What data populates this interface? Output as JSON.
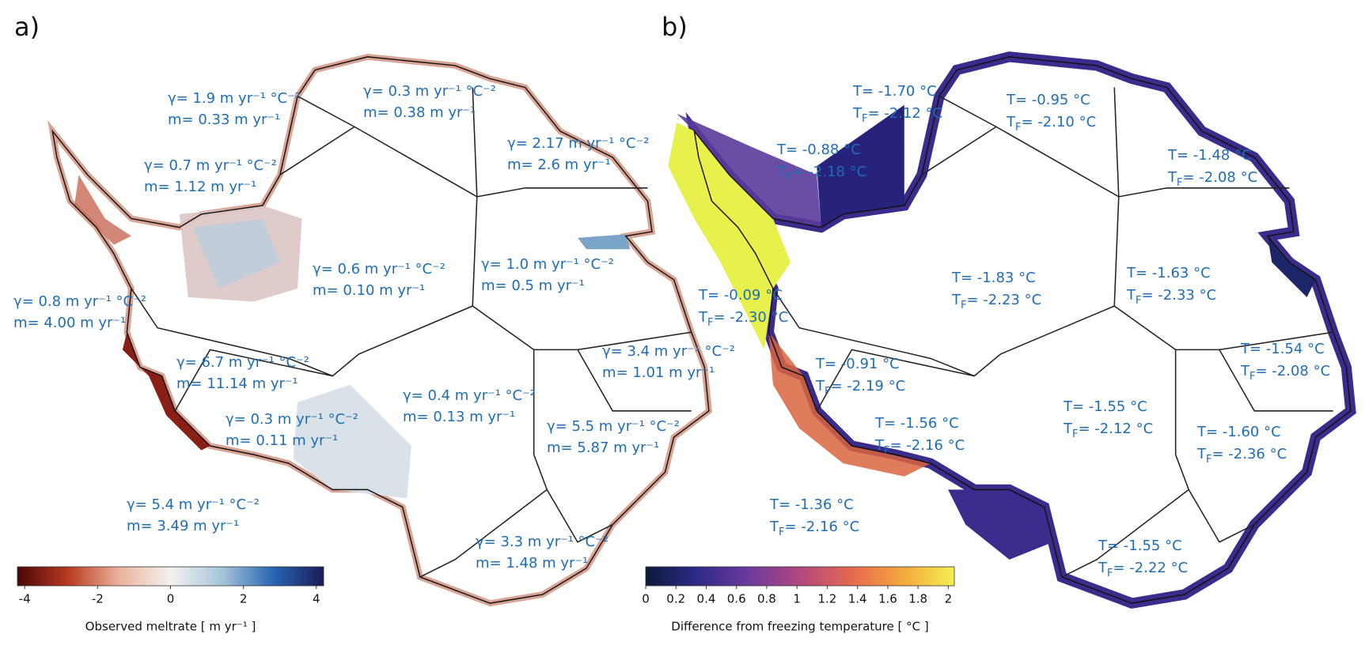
{
  "panels": [
    {
      "label": "a)",
      "annotations": [
        {
          "gamma": "γ= 1.9 m yr⁻¹ °C⁻²",
          "m": "m= 0.33 m yr⁻¹"
        },
        {
          "gamma": "γ= 0.3 m yr⁻¹ °C⁻²",
          "m": "m= 0.38 m yr⁻¹"
        },
        {
          "gamma": "γ= 2.17 m yr⁻¹ °C⁻²",
          "m": "m= 2.6 m yr⁻¹"
        },
        {
          "gamma": "γ= 0.7 m yr⁻¹ °C⁻²",
          "m": "m= 1.12 m yr⁻¹"
        },
        {
          "gamma": "γ= 0.6 m yr⁻¹ °C⁻²",
          "m": "m= 0.10 m yr⁻¹"
        },
        {
          "gamma": "γ= 1.0 m yr⁻¹ °C⁻²",
          "m": "m= 0.5 m yr⁻¹"
        },
        {
          "gamma": "γ= 0.8 m yr⁻¹ °C⁻²",
          "m": "m= 4.00 m yr⁻¹"
        },
        {
          "gamma": "γ= 3.4 m yr⁻¹ °C⁻²",
          "m": "m= 1.01 m yr⁻¹"
        },
        {
          "gamma": "γ= 6.7 m yr⁻¹ °C⁻²",
          "m": "m= 11.14 m yr⁻¹"
        },
        {
          "gamma": "γ= 0.4 m yr⁻¹ °C⁻²",
          "m": "m= 0.13 m yr⁻¹"
        },
        {
          "gamma": "γ= 0.3 m yr⁻¹ °C⁻²",
          "m": "m= 0.11 m yr⁻¹"
        },
        {
          "gamma": "γ= 5.5 m yr⁻¹ °C⁻²",
          "m": "m= 5.87 m yr⁻¹"
        },
        {
          "gamma": "γ= 5.4 m yr⁻¹ °C⁻²",
          "m": "m= 3.49 m yr⁻¹"
        },
        {
          "gamma": "γ= 3.3 m yr⁻¹ °C⁻²",
          "m": "m= 1.48 m yr⁻¹"
        }
      ],
      "colorbar": {
        "range": [
          -4.2,
          4.2
        ],
        "ticks": [
          -4,
          -2,
          0,
          2,
          4
        ],
        "colors": [
          "#4a0608",
          "#b93a22",
          "#e9b49e",
          "#f3f1ef",
          "#a7c6da",
          "#2a66b3",
          "#1a1c55"
        ],
        "label": "Observed meltrate  [ m yr⁻¹ ]"
      }
    },
    {
      "label": "b)",
      "tf_symbol": {
        "base": "T",
        "sub": "F"
      },
      "annotations": [
        {
          "t": "T= -1.70 °C",
          "tf": "= -2.12 °C"
        },
        {
          "t": "T= -0.95 °C",
          "tf": "= -2.10 °C"
        },
        {
          "t": "T= -0.88 °C",
          "tf": "= -2.18 °C"
        },
        {
          "t": "T= -1.48 °C",
          "tf": "= -2.08 °C"
        },
        {
          "t": "T= -1.83 °C",
          "tf": "= -2.23 °C"
        },
        {
          "t": "T= -1.63 °C",
          "tf": "= -2.33 °C"
        },
        {
          "t": "T= -0.09 °C",
          "tf": "= -2.30 °C"
        },
        {
          "t": "T= -1.54 °C",
          "tf": "= -2.08 °C"
        },
        {
          "t": "T= -0.91 °C",
          "tf": "= -2.19 °C"
        },
        {
          "t": "T= -1.56 °C",
          "tf": "= -2.16 °C"
        },
        {
          "t": "T= -1.55 °C",
          "tf": "= -2.12 °C"
        },
        {
          "t": "T= -1.60 °C",
          "tf": "= -2.36 °C"
        },
        {
          "t": "T= -1.36 °C",
          "tf": "= -2.16 °C"
        },
        {
          "t": "T= -1.55 °C",
          "tf": "= -2.22 °C"
        }
      ],
      "colorbar": {
        "range": [
          0,
          2.04
        ],
        "ticks": [
          0,
          0.2,
          0.4,
          0.6,
          0.8,
          1,
          1.2,
          1.4,
          1.6,
          1.8,
          2
        ],
        "colors": [
          "#0b1a3c",
          "#2f2a86",
          "#6b3a9c",
          "#b0487e",
          "#e5694f",
          "#f5a83e",
          "#f2f052"
        ],
        "label": "Difference from freezing temperature [ °C ]"
      }
    }
  ]
}
